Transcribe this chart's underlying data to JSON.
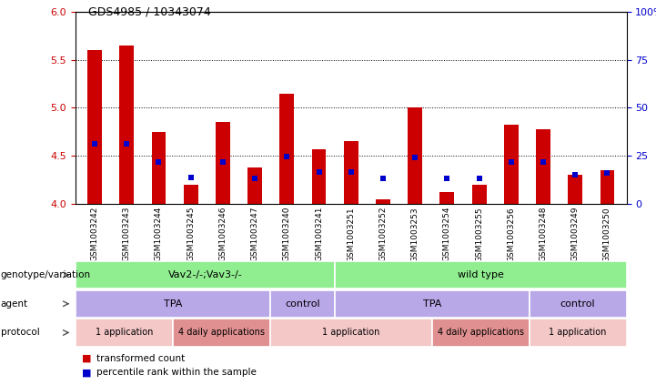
{
  "title": "GDS4985 / 10343074",
  "samples": [
    "GSM1003242",
    "GSM1003243",
    "GSM1003244",
    "GSM1003245",
    "GSM1003246",
    "GSM1003247",
    "GSM1003240",
    "GSM1003241",
    "GSM1003251",
    "GSM1003252",
    "GSM1003253",
    "GSM1003254",
    "GSM1003255",
    "GSM1003256",
    "GSM1003248",
    "GSM1003249",
    "GSM1003250"
  ],
  "red_values": [
    5.6,
    5.65,
    4.75,
    4.2,
    4.85,
    4.38,
    5.15,
    4.57,
    4.65,
    4.05,
    5.0,
    4.12,
    4.2,
    4.82,
    4.78,
    4.3,
    4.35
  ],
  "blue_values": [
    4.63,
    4.63,
    4.44,
    4.28,
    4.44,
    4.27,
    4.49,
    4.33,
    4.33,
    4.27,
    4.48,
    4.27,
    4.27,
    4.44,
    4.44,
    4.3,
    4.32
  ],
  "ymin": 4.0,
  "ymax": 6.0,
  "yticks_left": [
    4.0,
    4.5,
    5.0,
    5.5,
    6.0
  ],
  "yticks_right": [
    0,
    25,
    50,
    75,
    100
  ],
  "grid_lines": [
    4.5,
    5.0,
    5.5
  ],
  "bar_color": "#cc0000",
  "blue_color": "#0000cc",
  "genotype_color": "#90ee90",
  "agent_color": "#b8a8e8",
  "proto1_color": "#f5c8c8",
  "proto2_color": "#e09090",
  "legend_red": "transformed count",
  "legend_blue": "percentile rank within the sample",
  "left_label_color": "#cc0000",
  "right_label_color": "#0000cc",
  "genotype_groups": [
    {
      "label": "Vav2-/-;Vav3-/-",
      "start": 0,
      "end": 8
    },
    {
      "label": "wild type",
      "start": 8,
      "end": 17
    }
  ],
  "agent_groups": [
    {
      "label": "TPA",
      "start": 0,
      "end": 6
    },
    {
      "label": "control",
      "start": 6,
      "end": 8
    },
    {
      "label": "TPA",
      "start": 8,
      "end": 14
    },
    {
      "label": "control",
      "start": 14,
      "end": 17
    }
  ],
  "protocol_groups": [
    {
      "label": "1 application",
      "start": 0,
      "end": 3,
      "type": 1
    },
    {
      "label": "4 daily applications",
      "start": 3,
      "end": 6,
      "type": 2
    },
    {
      "label": "1 application",
      "start": 6,
      "end": 11,
      "type": 1
    },
    {
      "label": "4 daily applications",
      "start": 11,
      "end": 14,
      "type": 2
    },
    {
      "label": "1 application",
      "start": 14,
      "end": 17,
      "type": 1
    }
  ]
}
